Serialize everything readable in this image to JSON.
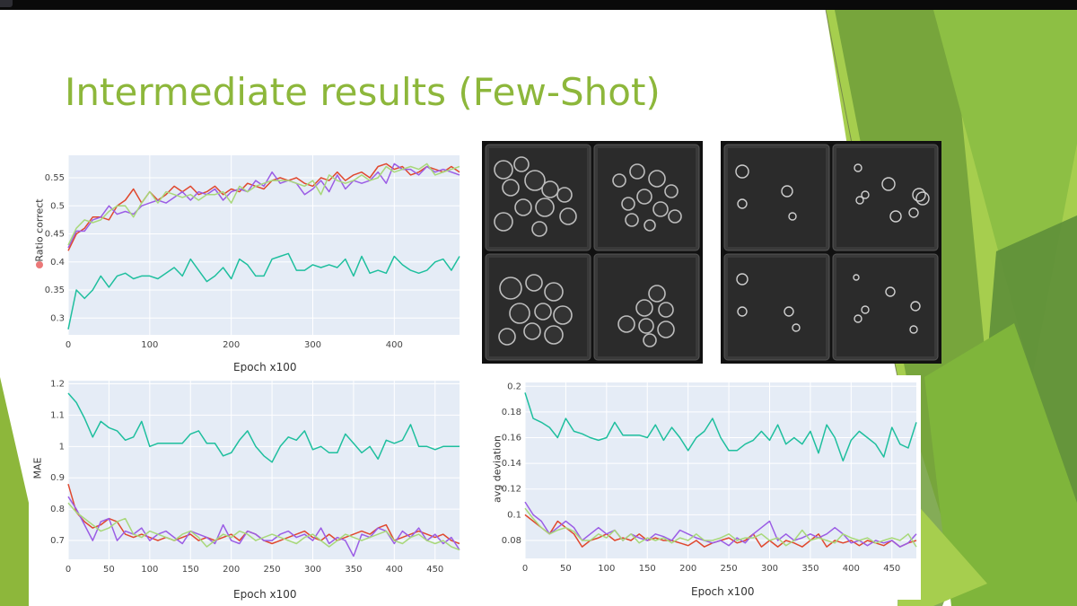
{
  "slide": {
    "title": "Intermediate results (Few-Shot)",
    "colors": {
      "title": "#8DB73B",
      "plot_bg": "#E5ECF6",
      "green_dark": "#5E8F3A",
      "green_mid": "#7FB53B",
      "green_light": "#A6CE4E",
      "series_teal": "#1FBF9E",
      "series_red": "#E0482E",
      "series_purple": "#9B5DE5",
      "series_lightgreen": "#A8D87A"
    }
  },
  "images": {
    "left_panel": "segmented-cell-micrographs-2x2",
    "right_panel": "predicted-circle-masks-2x2"
  },
  "chart_data": [
    {
      "id": "ratio",
      "type": "line",
      "xlabel": "Epoch x100",
      "ylabel": "Ratio correct",
      "xlim": [
        0,
        480
      ],
      "ylim": [
        0.27,
        0.59
      ],
      "xticks": [
        0,
        100,
        200,
        300,
        400
      ],
      "yticks": [
        0.3,
        0.35,
        0.4,
        0.45,
        0.5,
        0.55
      ],
      "ytick_labels": [
        "0.3",
        "0.35",
        "0.4",
        "0.45",
        "0.5",
        "0.55"
      ],
      "grid": true,
      "legend": "none",
      "x": [
        0,
        10,
        20,
        30,
        40,
        50,
        60,
        70,
        80,
        90,
        100,
        110,
        120,
        130,
        140,
        150,
        160,
        170,
        180,
        190,
        200,
        210,
        220,
        230,
        240,
        250,
        260,
        270,
        280,
        290,
        300,
        310,
        320,
        330,
        340,
        350,
        360,
        370,
        380,
        390,
        400,
        410,
        420,
        430,
        440,
        450,
        460,
        470,
        480
      ],
      "series": [
        {
          "color": "#1FBF9E",
          "values": [
            0.28,
            0.35,
            0.335,
            0.35,
            0.375,
            0.355,
            0.375,
            0.38,
            0.37,
            0.375,
            0.375,
            0.37,
            0.38,
            0.39,
            0.375,
            0.405,
            0.385,
            0.365,
            0.375,
            0.39,
            0.37,
            0.405,
            0.395,
            0.375,
            0.375,
            0.405,
            0.41,
            0.415,
            0.385,
            0.385,
            0.395,
            0.39,
            0.395,
            0.39,
            0.405,
            0.375,
            0.41,
            0.38,
            0.385,
            0.38,
            0.41,
            0.395,
            0.385,
            0.38,
            0.385,
            0.4,
            0.405,
            0.385,
            0.41
          ]
        },
        {
          "color": "#E0482E",
          "values": [
            0.42,
            0.45,
            0.46,
            0.48,
            0.48,
            0.475,
            0.5,
            0.51,
            0.53,
            0.505,
            0.525,
            0.51,
            0.52,
            0.535,
            0.525,
            0.535,
            0.52,
            0.525,
            0.535,
            0.52,
            0.53,
            0.525,
            0.54,
            0.535,
            0.53,
            0.545,
            0.55,
            0.545,
            0.55,
            0.54,
            0.535,
            0.55,
            0.545,
            0.56,
            0.545,
            0.555,
            0.56,
            0.55,
            0.57,
            0.575,
            0.565,
            0.57,
            0.555,
            0.56,
            0.57,
            0.565,
            0.56,
            0.57,
            0.56
          ]
        },
        {
          "color": "#9B5DE5",
          "values": [
            0.425,
            0.455,
            0.455,
            0.475,
            0.48,
            0.5,
            0.485,
            0.49,
            0.485,
            0.5,
            0.505,
            0.51,
            0.505,
            0.515,
            0.525,
            0.51,
            0.525,
            0.52,
            0.53,
            0.51,
            0.525,
            0.53,
            0.525,
            0.545,
            0.535,
            0.56,
            0.54,
            0.545,
            0.54,
            0.52,
            0.53,
            0.545,
            0.525,
            0.555,
            0.53,
            0.545,
            0.54,
            0.545,
            0.56,
            0.54,
            0.575,
            0.565,
            0.565,
            0.555,
            0.57,
            0.56,
            0.565,
            0.56,
            0.555
          ]
        },
        {
          "color": "#A8D87A",
          "values": [
            0.43,
            0.46,
            0.475,
            0.47,
            0.475,
            0.49,
            0.5,
            0.5,
            0.48,
            0.505,
            0.525,
            0.505,
            0.525,
            0.52,
            0.515,
            0.52,
            0.51,
            0.52,
            0.52,
            0.525,
            0.505,
            0.535,
            0.525,
            0.535,
            0.54,
            0.545,
            0.545,
            0.545,
            0.54,
            0.535,
            0.545,
            0.52,
            0.555,
            0.545,
            0.54,
            0.545,
            0.555,
            0.545,
            0.55,
            0.57,
            0.56,
            0.565,
            0.57,
            0.565,
            0.575,
            0.555,
            0.56,
            0.565,
            0.57
          ]
        }
      ]
    },
    {
      "id": "mae",
      "type": "line",
      "xlabel": "Epoch x100",
      "ylabel": "MAE",
      "xlim": [
        0,
        480
      ],
      "ylim": [
        0.64,
        1.21
      ],
      "xticks": [
        0,
        50,
        100,
        150,
        200,
        250,
        300,
        350,
        400,
        450
      ],
      "yticks": [
        0.7,
        0.8,
        0.9,
        1.0,
        1.1,
        1.2
      ],
      "ytick_labels": [
        "0.7",
        "0.8",
        "0.9",
        "1",
        "1.1",
        "1.2"
      ],
      "grid": true,
      "legend": "none",
      "x": [
        0,
        10,
        20,
        30,
        40,
        50,
        60,
        70,
        80,
        90,
        100,
        110,
        120,
        130,
        140,
        150,
        160,
        170,
        180,
        190,
        200,
        210,
        220,
        230,
        240,
        250,
        260,
        270,
        280,
        290,
        300,
        310,
        320,
        330,
        340,
        350,
        360,
        370,
        380,
        390,
        400,
        410,
        420,
        430,
        440,
        450,
        460,
        470,
        480
      ],
      "series": [
        {
          "color": "#1FBF9E",
          "values": [
            1.17,
            1.14,
            1.09,
            1.03,
            1.08,
            1.06,
            1.05,
            1.02,
            1.03,
            1.08,
            1.0,
            1.01,
            1.01,
            1.01,
            1.01,
            1.04,
            1.05,
            1.01,
            1.01,
            0.97,
            0.98,
            1.02,
            1.05,
            1.0,
            0.97,
            0.95,
            1.0,
            1.03,
            1.02,
            1.05,
            0.99,
            1.0,
            0.98,
            0.98,
            1.04,
            1.01,
            0.98,
            1.0,
            0.96,
            1.02,
            1.01,
            1.02,
            1.07,
            1.0,
            1.0,
            0.99,
            1.0,
            1.0,
            1.0
          ]
        },
        {
          "color": "#E0482E",
          "values": [
            0.88,
            0.79,
            0.76,
            0.74,
            0.75,
            0.77,
            0.76,
            0.72,
            0.71,
            0.72,
            0.71,
            0.7,
            0.71,
            0.7,
            0.71,
            0.72,
            0.7,
            0.71,
            0.7,
            0.71,
            0.72,
            0.7,
            0.73,
            0.72,
            0.7,
            0.69,
            0.7,
            0.71,
            0.72,
            0.73,
            0.71,
            0.7,
            0.72,
            0.7,
            0.71,
            0.72,
            0.73,
            0.72,
            0.74,
            0.75,
            0.7,
            0.71,
            0.72,
            0.73,
            0.72,
            0.71,
            0.72,
            0.7,
            0.69
          ]
        },
        {
          "color": "#9B5DE5",
          "values": [
            0.84,
            0.8,
            0.75,
            0.7,
            0.76,
            0.77,
            0.7,
            0.73,
            0.72,
            0.74,
            0.7,
            0.72,
            0.73,
            0.71,
            0.69,
            0.73,
            0.72,
            0.71,
            0.69,
            0.75,
            0.7,
            0.69,
            0.73,
            0.72,
            0.7,
            0.7,
            0.72,
            0.73,
            0.71,
            0.72,
            0.7,
            0.74,
            0.69,
            0.71,
            0.7,
            0.65,
            0.72,
            0.71,
            0.74,
            0.73,
            0.69,
            0.73,
            0.71,
            0.74,
            0.7,
            0.72,
            0.69,
            0.71,
            0.67
          ]
        },
        {
          "color": "#A8D87A",
          "values": [
            0.82,
            0.79,
            0.77,
            0.75,
            0.73,
            0.74,
            0.76,
            0.77,
            0.72,
            0.71,
            0.73,
            0.72,
            0.71,
            0.7,
            0.72,
            0.73,
            0.71,
            0.68,
            0.7,
            0.72,
            0.71,
            0.73,
            0.72,
            0.7,
            0.71,
            0.72,
            0.71,
            0.7,
            0.69,
            0.71,
            0.72,
            0.7,
            0.68,
            0.7,
            0.72,
            0.71,
            0.7,
            0.71,
            0.72,
            0.73,
            0.7,
            0.69,
            0.71,
            0.72,
            0.7,
            0.69,
            0.7,
            0.68,
            0.67
          ]
        }
      ]
    },
    {
      "id": "avgdev",
      "type": "line",
      "xlabel": "Epoch x100",
      "ylabel": "avg deviation",
      "xlim": [
        0,
        480
      ],
      "ylim": [
        0.066,
        0.203
      ],
      "xticks": [
        0,
        50,
        100,
        150,
        200,
        250,
        300,
        350,
        400,
        450
      ],
      "yticks": [
        0.08,
        0.1,
        0.12,
        0.14,
        0.16,
        0.18,
        0.2
      ],
      "ytick_labels": [
        "0.08",
        "0.1",
        "0.12",
        "0.14",
        "0.16",
        "0.18",
        "0.2"
      ],
      "grid": true,
      "legend": "none",
      "x": [
        0,
        10,
        20,
        30,
        40,
        50,
        60,
        70,
        80,
        90,
        100,
        110,
        120,
        130,
        140,
        150,
        160,
        170,
        180,
        190,
        200,
        210,
        220,
        230,
        240,
        250,
        260,
        270,
        280,
        290,
        300,
        310,
        320,
        330,
        340,
        350,
        360,
        370,
        380,
        390,
        400,
        410,
        420,
        430,
        440,
        450,
        460,
        470,
        480
      ],
      "series": [
        {
          "color": "#1FBF9E",
          "values": [
            0.195,
            0.175,
            0.172,
            0.168,
            0.16,
            0.175,
            0.165,
            0.163,
            0.16,
            0.158,
            0.16,
            0.172,
            0.162,
            0.162,
            0.162,
            0.16,
            0.17,
            0.158,
            0.168,
            0.16,
            0.15,
            0.16,
            0.165,
            0.175,
            0.16,
            0.15,
            0.15,
            0.155,
            0.158,
            0.165,
            0.158,
            0.17,
            0.155,
            0.16,
            0.155,
            0.165,
            0.148,
            0.17,
            0.16,
            0.142,
            0.158,
            0.165,
            0.16,
            0.155,
            0.145,
            0.168,
            0.155,
            0.152,
            0.172
          ]
        },
        {
          "color": "#E0482E",
          "values": [
            0.1,
            0.095,
            0.09,
            0.085,
            0.095,
            0.09,
            0.085,
            0.075,
            0.08,
            0.082,
            0.085,
            0.08,
            0.082,
            0.08,
            0.085,
            0.08,
            0.082,
            0.08,
            0.08,
            0.078,
            0.076,
            0.08,
            0.075,
            0.078,
            0.08,
            0.082,
            0.078,
            0.08,
            0.085,
            0.075,
            0.08,
            0.075,
            0.08,
            0.078,
            0.075,
            0.08,
            0.085,
            0.075,
            0.08,
            0.078,
            0.08,
            0.076,
            0.08,
            0.078,
            0.076,
            0.08,
            0.075,
            0.078,
            0.08
          ]
        },
        {
          "color": "#9B5DE5",
          "values": [
            0.11,
            0.1,
            0.095,
            0.085,
            0.09,
            0.095,
            0.09,
            0.08,
            0.085,
            0.09,
            0.085,
            0.088,
            0.08,
            0.085,
            0.082,
            0.08,
            0.085,
            0.083,
            0.08,
            0.088,
            0.085,
            0.082,
            0.08,
            0.078,
            0.08,
            0.076,
            0.082,
            0.078,
            0.085,
            0.09,
            0.095,
            0.08,
            0.085,
            0.08,
            0.082,
            0.085,
            0.082,
            0.085,
            0.09,
            0.085,
            0.078,
            0.08,
            0.076,
            0.08,
            0.078,
            0.08,
            0.075,
            0.078,
            0.085
          ]
        },
        {
          "color": "#A8D87A",
          "values": [
            0.105,
            0.097,
            0.09,
            0.085,
            0.088,
            0.09,
            0.087,
            0.08,
            0.08,
            0.085,
            0.082,
            0.088,
            0.08,
            0.085,
            0.078,
            0.082,
            0.08,
            0.082,
            0.078,
            0.082,
            0.08,
            0.085,
            0.08,
            0.08,
            0.082,
            0.085,
            0.08,
            0.082,
            0.082,
            0.085,
            0.08,
            0.082,
            0.076,
            0.08,
            0.088,
            0.08,
            0.082,
            0.08,
            0.078,
            0.085,
            0.082,
            0.08,
            0.082,
            0.078,
            0.08,
            0.082,
            0.08,
            0.085,
            0.075
          ]
        }
      ]
    }
  ]
}
